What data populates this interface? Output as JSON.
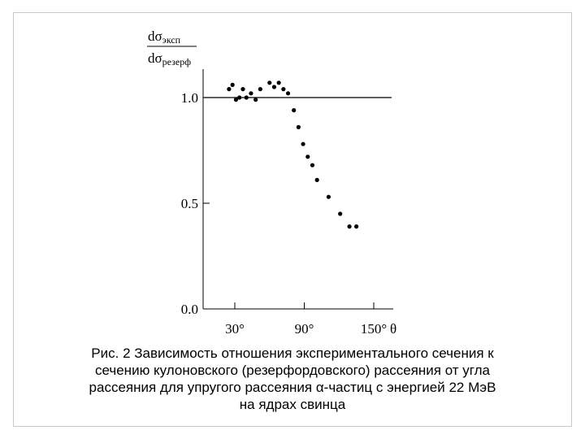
{
  "chart_data": {
    "type": "scatter",
    "ylabel_numerator": "dσ",
    "ylabel_numerator_sub": "эксп",
    "ylabel_denominator": "dσ",
    "ylabel_denominator_sub": "резерф",
    "xlabel": "θ",
    "yticks": [
      {
        "value": 0.0,
        "label": "0.0"
      },
      {
        "value": 0.5,
        "label": "0.5"
      },
      {
        "value": 1.0,
        "label": "1.0"
      }
    ],
    "xticks": [
      {
        "value": 30,
        "label": "30°"
      },
      {
        "value": 90,
        "label": "90°"
      },
      {
        "value": 150,
        "label": "150°"
      }
    ],
    "reference_line_y": 1.0,
    "xlim": [
      10,
      170
    ],
    "ylim": [
      0,
      1.2
    ],
    "points": [
      {
        "x": 25,
        "y": 1.04
      },
      {
        "x": 28,
        "y": 1.06
      },
      {
        "x": 31,
        "y": 0.99
      },
      {
        "x": 34,
        "y": 1.0
      },
      {
        "x": 37,
        "y": 1.04
      },
      {
        "x": 40,
        "y": 1.0
      },
      {
        "x": 44,
        "y": 1.02
      },
      {
        "x": 48,
        "y": 0.99
      },
      {
        "x": 52,
        "y": 1.04
      },
      {
        "x": 60,
        "y": 1.07
      },
      {
        "x": 64,
        "y": 1.05
      },
      {
        "x": 68,
        "y": 1.07
      },
      {
        "x": 72,
        "y": 1.04
      },
      {
        "x": 76,
        "y": 1.02
      },
      {
        "x": 81,
        "y": 0.94
      },
      {
        "x": 85,
        "y": 0.86
      },
      {
        "x": 89,
        "y": 0.78
      },
      {
        "x": 93,
        "y": 0.72
      },
      {
        "x": 97,
        "y": 0.68
      },
      {
        "x": 101,
        "y": 0.61
      },
      {
        "x": 111,
        "y": 0.53
      },
      {
        "x": 121,
        "y": 0.45
      },
      {
        "x": 129,
        "y": 0.39
      },
      {
        "x": 135,
        "y": 0.39
      }
    ]
  },
  "caption": {
    "line1": "Рис. 2 Зависимость отношения экспериментального сечения к",
    "line2": "сечению кулоновского (резерфордовского) рассеяния от угла",
    "line3": "рассеяния для упругого рассеяния  α-частиц с энергией 22 МэВ",
    "line4": "на ядрах свинца"
  }
}
